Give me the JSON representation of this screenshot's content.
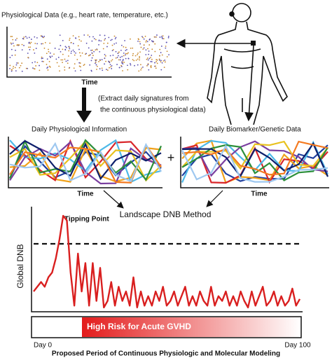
{
  "top_plot": {
    "title": "Physiological Data (e.g., heart rate, temperature, etc.)",
    "x_label": "Time"
  },
  "extract_note": [
    "(Extract daily signatures from",
    "the continuous physiological data)"
  ],
  "daily_physio": {
    "title": "Daily Physiological Information",
    "x_label": "Time"
  },
  "daily_biomarker": {
    "title": "Daily Biomarker/Genetic Data",
    "x_label": "Time"
  },
  "plus": "+",
  "method": "Landscape DNB Method",
  "dnb_plot": {
    "y_label": "Global DNB",
    "annotation": "Tipping Point",
    "risk_label": "High Risk for Acute GVHD",
    "start_label": "Day 0",
    "end_label": "Day 100",
    "caption": "Proposed Period of Continuous Physiologic and Molecular Modeling",
    "values": [
      2.0,
      2.5,
      3.0,
      2.5,
      3.5,
      4.0,
      5.5,
      7.5,
      10,
      9.5,
      4,
      0.5,
      6,
      2,
      5,
      0.5,
      5,
      1,
      4.5,
      0.3,
      1,
      3,
      0.5,
      2.5,
      1,
      2,
      0.5,
      3.5,
      0.3,
      2,
      0.5,
      1.5,
      0.5,
      2,
      1,
      2.5,
      0.5,
      1,
      2,
      0.5,
      1.5,
      2.5,
      0.5,
      1.5,
      0.5,
      2,
      1,
      0.5,
      2.5,
      0.5,
      1.5,
      1,
      2,
      0.5,
      1.5,
      0.5,
      2,
      1,
      0.3,
      2,
      0.5,
      1.5,
      2.5,
      0.5,
      1,
      2,
      0.5,
      1.5,
      0.5,
      1,
      2.3,
      0.5,
      1.2
    ]
  }
}
